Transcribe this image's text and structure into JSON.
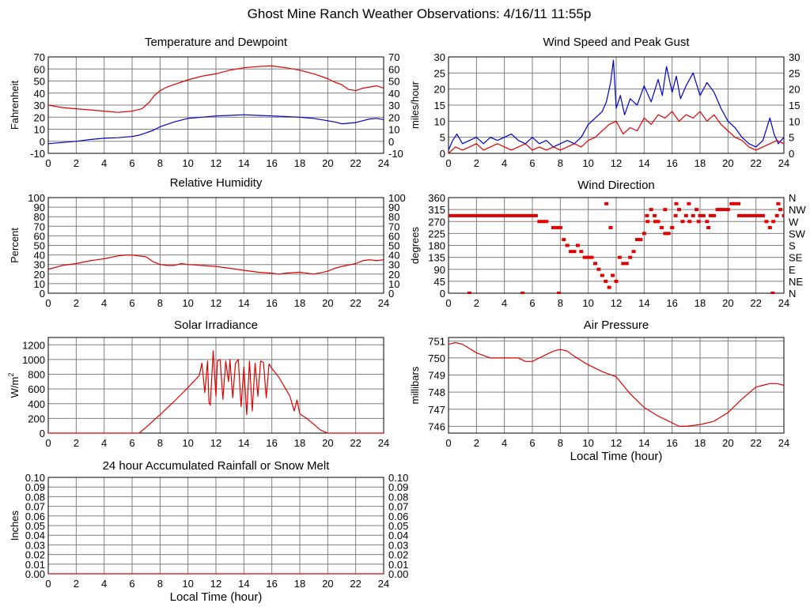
{
  "page_title": "Ghost Mine Ranch Weather Observations: 4/16/11 11:55p",
  "colors": {
    "red": "#e00000",
    "blue": "#0000cc",
    "grid": "#7f7f7f"
  },
  "chart_data": [
    {
      "id": "temperature",
      "type": "line",
      "title": "Temperature and Dewpoint",
      "ylabel": "Fahrenheit",
      "xlabel": "",
      "xlim": [
        0,
        24
      ],
      "ylim": [
        -10,
        70
      ],
      "x_ticks": [
        "0",
        "2",
        "4",
        "6",
        "8",
        "10",
        "12",
        "14",
        "16",
        "18",
        "20",
        "22",
        "24"
      ],
      "y_ticks": [
        "70",
        "60",
        "50",
        "40",
        "30",
        "20",
        "10",
        "0",
        "-10"
      ],
      "right_y_ticks": [
        "70",
        "60",
        "50",
        "40",
        "30",
        "20",
        "10",
        "0",
        "-10"
      ],
      "grid": true,
      "series": [
        {
          "color": "#e00000",
          "x": [
            0,
            1,
            2,
            3,
            4,
            5,
            6,
            6.7,
            7.2,
            7.6,
            8,
            8.5,
            9,
            10,
            11,
            12,
            13,
            14,
            15,
            16,
            17,
            18,
            19,
            20,
            20.5,
            21,
            21.5,
            22,
            22.5,
            23,
            23.5,
            24
          ],
          "y": [
            30,
            28,
            27,
            26,
            25,
            24,
            25,
            27,
            32,
            38,
            42,
            45,
            47,
            51,
            54,
            56,
            59,
            61,
            62,
            62.5,
            61,
            59,
            56,
            52,
            49,
            47,
            43,
            42,
            44,
            45,
            46,
            44
          ]
        },
        {
          "color": "#0000cc",
          "x": [
            0,
            1,
            2,
            3,
            4,
            5,
            6,
            6.5,
            7,
            7.5,
            8,
            9,
            10,
            11,
            12,
            13,
            14,
            15,
            16,
            17,
            18,
            19,
            20,
            20.5,
            21,
            22,
            22.5,
            23,
            23.5,
            24
          ],
          "y": [
            -2,
            -1,
            0,
            1.5,
            2.5,
            3,
            4,
            5,
            7,
            9,
            12,
            16,
            19,
            20,
            21,
            21.5,
            22,
            21.5,
            21,
            20.5,
            20,
            19,
            17,
            16,
            14.5,
            15.5,
            17,
            18.5,
            19,
            18
          ]
        }
      ]
    },
    {
      "id": "wind_speed",
      "type": "line",
      "title": "Wind Speed and Peak Gust",
      "ylabel": "miles/hour",
      "xlabel": "",
      "xlim": [
        0,
        24
      ],
      "ylim": [
        0,
        30
      ],
      "x_ticks": [
        "0",
        "2",
        "4",
        "6",
        "8",
        "10",
        "12",
        "14",
        "16",
        "18",
        "20",
        "22",
        "24"
      ],
      "y_ticks": [
        "30",
        "25",
        "20",
        "15",
        "10",
        "5",
        "0"
      ],
      "right_y_ticks": [
        "30",
        "25",
        "20",
        "15",
        "10",
        "5",
        "0"
      ],
      "grid": true,
      "series": [
        {
          "color": "#0000cc",
          "x": [
            0,
            0.3,
            0.6,
            1,
            1.5,
            2,
            2.5,
            3,
            3.5,
            4,
            4.5,
            5,
            5.5,
            6,
            6.5,
            7,
            7.5,
            8,
            8.5,
            9,
            9.5,
            10,
            10.5,
            11,
            11.3,
            11.6,
            11.8,
            12,
            12.3,
            12.6,
            13,
            13.5,
            14,
            14.5,
            15,
            15.3,
            15.6,
            16,
            16.3,
            16.6,
            17,
            17.5,
            18,
            18.5,
            19,
            19.5,
            20,
            20.5,
            21,
            21.5,
            22,
            22.5,
            23,
            23.3,
            23.6,
            24
          ],
          "y": [
            1,
            4,
            6,
            3,
            4,
            5,
            3,
            5,
            4,
            5,
            6,
            4,
            3,
            5,
            3,
            4,
            2,
            3,
            4,
            3,
            5,
            9,
            11,
            13,
            16,
            22,
            29,
            14,
            18,
            12,
            17,
            15,
            21,
            16,
            23,
            18,
            27,
            19,
            24,
            17,
            21,
            25,
            18,
            22,
            19,
            14,
            10,
            8,
            5,
            3,
            2,
            4,
            11,
            6,
            3,
            5
          ]
        },
        {
          "color": "#e00000",
          "x": [
            0,
            0.5,
            1,
            1.5,
            2,
            2.5,
            3,
            3.5,
            4,
            4.5,
            5,
            5.5,
            6,
            6.5,
            7,
            7.5,
            8,
            8.5,
            9,
            9.5,
            10,
            10.5,
            11,
            11.5,
            12,
            12.5,
            13,
            13.5,
            14,
            14.5,
            15,
            15.5,
            16,
            16.5,
            17,
            17.5,
            18,
            18.5,
            19,
            19.5,
            20,
            20.5,
            21,
            21.5,
            22,
            22.5,
            23,
            23.5,
            24
          ],
          "y": [
            0,
            2,
            1,
            2,
            3,
            1,
            2,
            3,
            2,
            1,
            2,
            3,
            1,
            2,
            1,
            2,
            1,
            2,
            3,
            2,
            4,
            5,
            7,
            9,
            10,
            6,
            8,
            7,
            11,
            9,
            12,
            11,
            13,
            10,
            12,
            11,
            13,
            10,
            12,
            9,
            7,
            5,
            4,
            2,
            1,
            2,
            3,
            4,
            3
          ]
        }
      ]
    },
    {
      "id": "humidity",
      "type": "line",
      "title": "Relative Humidity",
      "ylabel": "Percent",
      "xlabel": "",
      "xlim": [
        0,
        24
      ],
      "ylim": [
        0,
        100
      ],
      "x_ticks": [
        "0",
        "2",
        "4",
        "6",
        "8",
        "10",
        "12",
        "14",
        "16",
        "18",
        "20",
        "22",
        "24"
      ],
      "y_ticks": [
        "100",
        "90",
        "80",
        "70",
        "60",
        "50",
        "40",
        "30",
        "20",
        "10",
        "0"
      ],
      "right_y_ticks": [
        "100",
        "90",
        "80",
        "70",
        "60",
        "50",
        "40",
        "30",
        "20",
        "10",
        "0"
      ],
      "grid": true,
      "series": [
        {
          "color": "#e00000",
          "x": [
            0,
            1,
            2,
            3,
            4,
            5,
            5.5,
            6,
            6.5,
            7,
            7.5,
            8,
            8.5,
            9,
            9.5,
            10,
            11,
            12,
            13,
            14,
            15,
            16,
            16.5,
            17,
            18,
            19,
            20,
            20.5,
            21,
            22,
            22.5,
            23,
            23.5,
            24
          ],
          "y": [
            25,
            29,
            31,
            34,
            36,
            39,
            40,
            40,
            39,
            38,
            33,
            30,
            29,
            29,
            31,
            30,
            29,
            28,
            26,
            24,
            22,
            21,
            20,
            21,
            22,
            20,
            23,
            26,
            28,
            31,
            34,
            35,
            34,
            35
          ]
        }
      ]
    },
    {
      "id": "wind_direction",
      "type": "scatter",
      "title": "Wind Direction",
      "ylabel": "degrees",
      "xlabel": "",
      "xlim": [
        0,
        24
      ],
      "ylim": [
        0,
        360
      ],
      "x_ticks": [
        "0",
        "2",
        "4",
        "6",
        "8",
        "10",
        "12",
        "14",
        "16",
        "18",
        "20",
        "22",
        "24"
      ],
      "y_ticks": [
        "360",
        "315",
        "270",
        "225",
        "180",
        "135",
        "90",
        "45",
        "0"
      ],
      "right_y_ticks": [
        "N",
        "NW",
        "W",
        "SW",
        "S",
        "SE",
        "E",
        "NE",
        "N"
      ],
      "grid": true,
      "series": [
        {
          "color": "#e00000",
          "x": [
            0,
            0.25,
            0.5,
            0.75,
            1,
            1.25,
            1.5,
            1.75,
            2,
            2.25,
            2.5,
            2.75,
            3,
            3.25,
            3.5,
            3.75,
            4,
            4.25,
            4.5,
            4.75,
            5,
            5.25,
            5.5,
            5.75,
            6,
            6.25,
            6.5,
            6.75,
            7,
            7.5,
            7.75,
            8,
            8.25,
            8.5,
            8.75,
            9,
            9.25,
            9.5,
            9.75,
            10,
            10.25,
            10.5,
            10.75,
            11,
            11.25,
            11.5,
            11.75,
            12,
            12.25,
            12.5,
            12.75,
            13,
            13.25,
            13.5,
            13.75,
            14,
            14.25,
            14.5,
            14.75,
            15,
            15.25,
            15.5,
            15.75,
            16,
            16.25,
            16.5,
            16.75,
            17,
            17.25,
            17.5,
            17.75,
            18,
            18.25,
            18.5,
            18.75,
            19,
            19.25,
            19.5,
            19.75,
            20,
            20.25,
            20.5,
            20.75,
            21,
            21.25,
            21.5,
            21.75,
            22,
            22.25,
            22.5,
            22.75,
            23,
            23.25,
            23.5,
            23.75,
            24,
            1.5,
            5.3,
            7.9,
            11.3,
            11.6,
            14.2,
            14.8,
            15.5,
            16.3,
            17.2,
            17.9,
            18.6,
            19.4,
            20.8,
            23.2,
            23.6
          ],
          "y": [
            292,
            292,
            292,
            292,
            292,
            292,
            292,
            292,
            292,
            292,
            292,
            292,
            292,
            292,
            292,
            292,
            292,
            292,
            292,
            292,
            292,
            292,
            292,
            292,
            292,
            292,
            270,
            270,
            270,
            247,
            247,
            247,
            202,
            180,
            157,
            157,
            180,
            157,
            135,
            135,
            135,
            112,
            90,
            67,
            45,
            22,
            67,
            45,
            135,
            112,
            112,
            135,
            157,
            202,
            202,
            225,
            270,
            315,
            292,
            270,
            247,
            225,
            225,
            247,
            292,
            315,
            270,
            292,
            270,
            292,
            315,
            292,
            292,
            270,
            292,
            292,
            315,
            315,
            315,
            315,
            337,
            337,
            337,
            292,
            292,
            292,
            292,
            292,
            292,
            292,
            270,
            247,
            270,
            292,
            315,
            292,
            0,
            0,
            0,
            337,
            247,
            292,
            270,
            315,
            337,
            337,
            270,
            247,
            315,
            292,
            0,
            337
          ]
        }
      ]
    },
    {
      "id": "solar",
      "type": "area",
      "title": "Solar Irradiance",
      "ylabel": "W/m",
      "ylabel_superscript": "2",
      "xlabel": "",
      "xlim": [
        0,
        24
      ],
      "ylim": [
        0,
        1300
      ],
      "x_ticks": [
        "0",
        "2",
        "4",
        "6",
        "8",
        "10",
        "12",
        "14",
        "16",
        "18",
        "20",
        "22",
        "24"
      ],
      "y_ticks": [
        "1200",
        "1000",
        "800",
        "600",
        "400",
        "200",
        "0"
      ],
      "right_y_ticks": [],
      "grid": true,
      "series": [
        {
          "color": "#e00000",
          "x": [
            0,
            6.5,
            7,
            8,
            9,
            10,
            10.8,
            11,
            11.2,
            11.4,
            11.5,
            11.6,
            11.8,
            12,
            12.1,
            12.3,
            12.5,
            12.7,
            12.9,
            13,
            13.2,
            13.4,
            13.6,
            13.8,
            14,
            14.2,
            14.4,
            14.6,
            14.8,
            15,
            15.2,
            15.4,
            15.6,
            15.8,
            16,
            16.5,
            17,
            17.3,
            17.6,
            17.8,
            18,
            18.5,
            19,
            19.5,
            20,
            24
          ],
          "y": [
            0,
            0,
            80,
            250,
            430,
            620,
            780,
            950,
            550,
            980,
            420,
            380,
            1120,
            500,
            980,
            1000,
            460,
            980,
            700,
            1000,
            480,
            950,
            1000,
            360,
            900,
            250,
            980,
            300,
            950,
            500,
            980,
            960,
            480,
            940,
            880,
            760,
            600,
            500,
            300,
            450,
            260,
            200,
            120,
            40,
            0,
            0
          ]
        }
      ]
    },
    {
      "id": "pressure",
      "type": "line",
      "title": "Air Pressure",
      "ylabel": "millibars",
      "xlabel": "Local Time (hour)",
      "xlim": [
        0,
        24
      ],
      "ylim": [
        745.6,
        751.2
      ],
      "x_ticks": [
        "0",
        "2",
        "4",
        "6",
        "8",
        "10",
        "12",
        "14",
        "16",
        "18",
        "20",
        "22",
        "24"
      ],
      "y_ticks": [
        "751",
        "750",
        "749",
        "748",
        "747",
        "746"
      ],
      "right_y_ticks": [],
      "grid": true,
      "series": [
        {
          "color": "#e00000",
          "x": [
            0,
            0.5,
            1,
            2,
            3,
            4,
            5,
            5.5,
            6,
            6.5,
            7,
            7.5,
            8,
            8.5,
            9,
            10,
            11,
            12,
            12.5,
            13,
            14,
            15,
            16,
            16.5,
            17,
            18,
            19,
            20,
            21,
            22,
            22.5,
            23,
            23.5,
            24
          ],
          "y": [
            750.8,
            750.9,
            750.8,
            750.3,
            750.0,
            750.0,
            750.0,
            749.8,
            749.8,
            750.0,
            750.2,
            750.4,
            750.5,
            750.4,
            750.1,
            749.6,
            749.2,
            748.9,
            748.4,
            747.9,
            747.1,
            746.6,
            746.2,
            746.0,
            746.0,
            746.1,
            746.3,
            746.8,
            747.6,
            748.3,
            748.4,
            748.5,
            748.5,
            748.4
          ]
        }
      ]
    },
    {
      "id": "rainfall",
      "type": "line",
      "title": "24 hour Accumulated Rainfall or Snow Melt",
      "ylabel": "Inches",
      "xlabel": "Local Time (hour)",
      "xlim": [
        0,
        24
      ],
      "ylim": [
        0,
        0.1
      ],
      "x_ticks": [
        "0",
        "2",
        "4",
        "6",
        "8",
        "10",
        "12",
        "14",
        "16",
        "18",
        "20",
        "22",
        "24"
      ],
      "y_ticks": [
        "0.10",
        "0.09",
        "0.08",
        "0.07",
        "0.06",
        "0.05",
        "0.04",
        "0.03",
        "0.02",
        "0.01",
        "0.00"
      ],
      "right_y_ticks": [
        "0.10",
        "0.09",
        "0.08",
        "0.07",
        "0.06",
        "0.05",
        "0.04",
        "0.03",
        "0.02",
        "0.01",
        "0.00"
      ],
      "grid": true,
      "series": [
        {
          "color": "#e00000",
          "x": [
            0,
            24
          ],
          "y": [
            0,
            0
          ]
        }
      ]
    }
  ]
}
